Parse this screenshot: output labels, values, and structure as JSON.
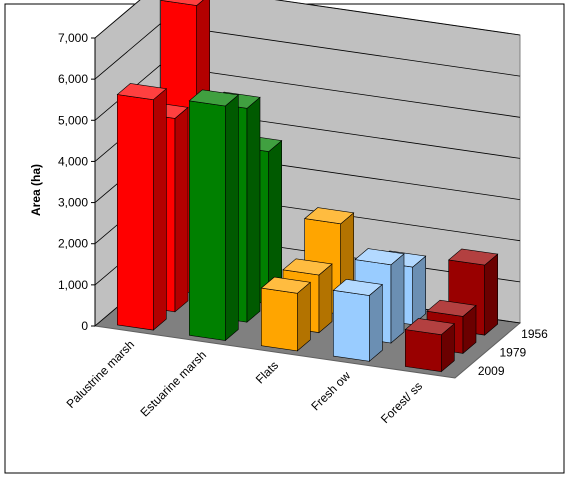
{
  "chart_data": {
    "type": "bar3d",
    "ylabel": "Area (ha)",
    "categories": [
      "Palustrine marsh",
      "Estuarine marsh",
      "Flats",
      "Fresh ow",
      "Forest/ ss"
    ],
    "colors": [
      "#ff0000",
      "#008000",
      "#ffa500",
      "#99ccff",
      "#990000"
    ],
    "series": [
      {
        "name": "1956",
        "values": [
          7000,
          3700,
          2200,
          1400,
          1700
        ]
      },
      {
        "name": "1979",
        "values": [
          4700,
          5200,
          1400,
          1900,
          900
        ]
      },
      {
        "name": "2009",
        "values": [
          5600,
          5700,
          1400,
          1600,
          900
        ]
      }
    ],
    "ylim": [
      0,
      7000
    ],
    "yticks": [
      0,
      {
        "value": 1000,
        "label": "1,000"
      },
      {
        "value": 2000,
        "label": "2,000"
      },
      {
        "value": 3000,
        "label": "3,000"
      },
      {
        "value": 4000,
        "label": "4,000"
      },
      {
        "value": 5000,
        "label": "5,000"
      },
      {
        "value": 6000,
        "label": "6,000"
      },
      {
        "value": 7000,
        "label": "7,000"
      }
    ],
    "grid": true
  }
}
